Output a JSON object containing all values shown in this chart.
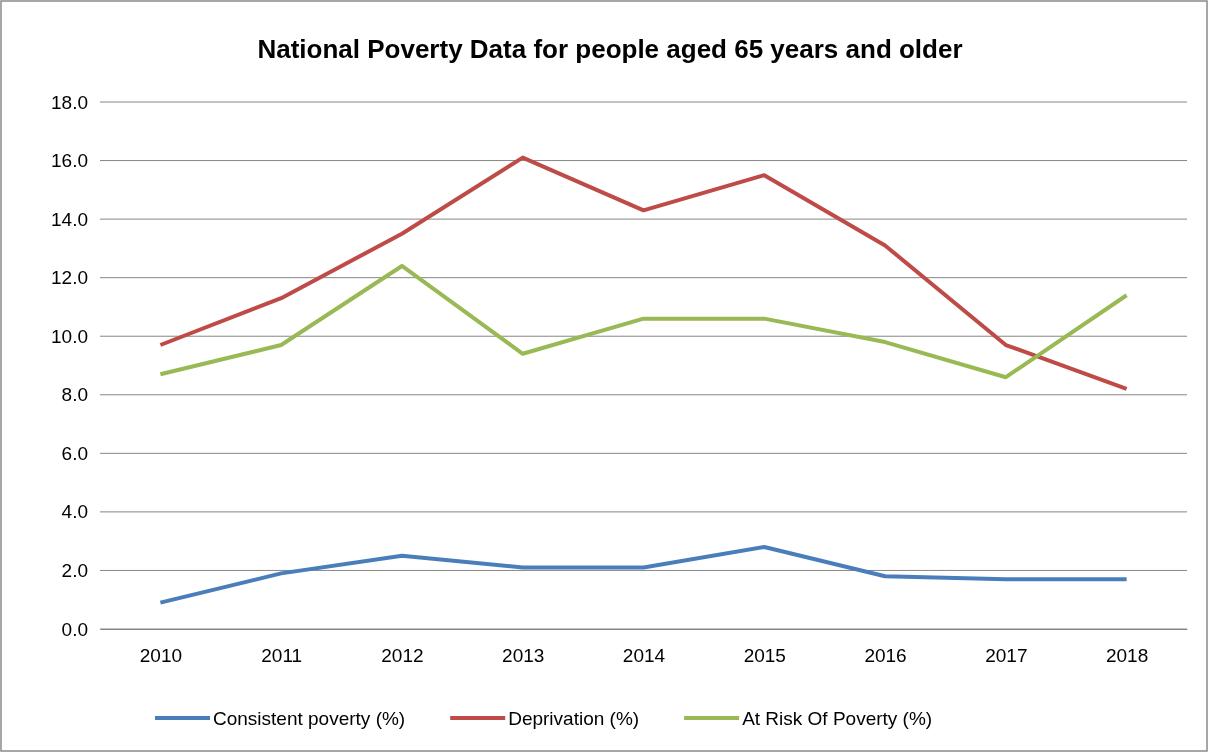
{
  "chart_data": {
    "type": "line",
    "title": "National Poverty Data for people aged 65 years and older",
    "categories": [
      "2010",
      "2011",
      "2012",
      "2013",
      "2014",
      "2015",
      "2016",
      "2017",
      "2018"
    ],
    "series": [
      {
        "name": "Consistent poverty (%)",
        "color": "#4a7ebb",
        "values": [
          0.9,
          1.9,
          2.5,
          2.1,
          2.1,
          2.8,
          1.8,
          1.7,
          1.7
        ]
      },
      {
        "name": "Deprivation (%)",
        "color": "#be4b48",
        "values": [
          9.7,
          11.3,
          13.5,
          16.1,
          14.3,
          15.5,
          13.1,
          9.7,
          8.2
        ]
      },
      {
        "name": "At Risk Of Poverty (%)",
        "color": "#98b954",
        "values": [
          8.7,
          9.7,
          12.4,
          9.4,
          10.6,
          10.6,
          9.8,
          8.6,
          11.4
        ]
      }
    ],
    "ylim": [
      0,
      18
    ],
    "yticks": [
      {
        "value": 0,
        "label": "0.0"
      },
      {
        "value": 2,
        "label": "2.0"
      },
      {
        "value": 4,
        "label": "4.0"
      },
      {
        "value": 6,
        "label": "6.0"
      },
      {
        "value": 8,
        "label": "8.0"
      },
      {
        "value": 10,
        "label": "10.0"
      },
      {
        "value": 12,
        "label": "12.0"
      },
      {
        "value": 14,
        "label": "14.0"
      },
      {
        "value": 16,
        "label": "16.0"
      },
      {
        "value": 18,
        "label": "18.0"
      }
    ],
    "grid": "y",
    "legend": "bottom",
    "marker": "none",
    "line_style": "solid"
  }
}
